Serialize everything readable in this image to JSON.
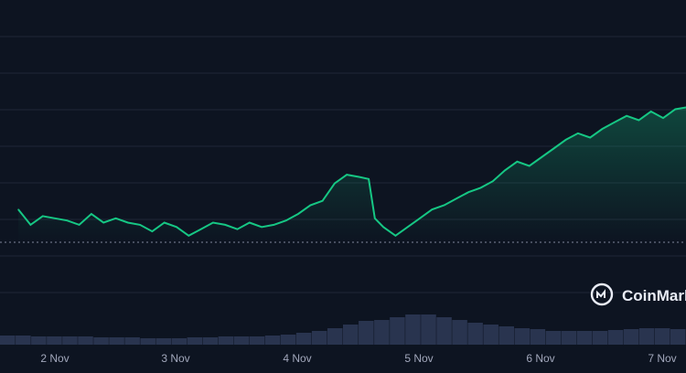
{
  "chart_data": {
    "type": "area",
    "title": "",
    "xlabel": "",
    "ylabel": "",
    "x_ticks": [
      "2 Nov",
      "3 Nov",
      "4 Nov",
      "5 Nov",
      "6 Nov",
      "7 Nov"
    ],
    "grid": true,
    "baseline_dotted": true,
    "series": [
      {
        "x": [
          1.7,
          1.8,
          1.9,
          2.0,
          2.1,
          2.2,
          2.3,
          2.4,
          2.5,
          2.6,
          2.7,
          2.8,
          2.9,
          3.0,
          3.1,
          3.2,
          3.3,
          3.4,
          3.5,
          3.6,
          3.7,
          3.8,
          3.9,
          4.0,
          4.1,
          4.2,
          4.3,
          4.4,
          4.5,
          4.58,
          4.63,
          4.7,
          4.8,
          4.9,
          5.0,
          5.1,
          5.2,
          5.3,
          5.4,
          5.5,
          5.6,
          5.7,
          5.8,
          5.9,
          6.0,
          6.1,
          6.2,
          6.3,
          6.4,
          6.5,
          6.6,
          6.7,
          6.8,
          6.9,
          7.0,
          7.1,
          7.2
        ],
        "values": [
          50,
          43,
          47,
          46,
          45,
          43,
          48,
          44,
          46,
          44,
          43,
          40,
          44,
          42,
          38,
          41,
          44,
          43,
          41,
          44,
          42,
          43,
          45,
          48,
          52,
          54,
          62,
          66,
          65,
          64,
          46,
          42,
          38,
          42,
          46,
          50,
          52,
          55,
          58,
          60,
          63,
          68,
          72,
          70,
          74,
          78,
          82,
          85,
          83,
          87,
          90,
          93,
          91,
          95,
          92,
          96,
          97
        ],
        "color": "#16c784"
      }
    ],
    "volume": [
      10,
      10,
      9,
      9,
      9,
      9,
      8,
      8,
      8,
      7,
      7,
      7,
      8,
      8,
      9,
      9,
      9,
      10,
      11,
      13,
      15,
      18,
      22,
      26,
      27,
      30,
      33,
      33,
      30,
      27,
      24,
      22,
      20,
      18,
      17,
      15,
      15,
      15,
      15,
      16,
      17,
      18,
      18,
      17
    ],
    "watermark": "CoinMark"
  }
}
